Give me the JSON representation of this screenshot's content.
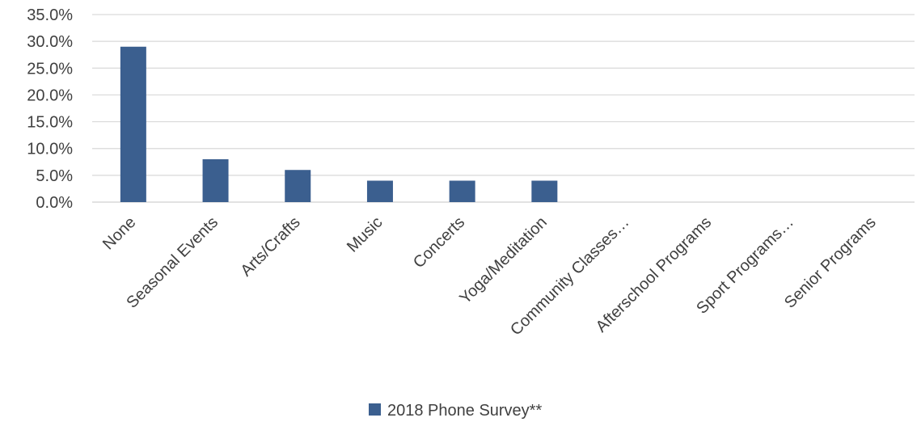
{
  "chart_data": {
    "type": "bar",
    "categories": [
      "None",
      "Seasonal Events",
      "Arts/Crafts",
      "Music",
      "Concerts",
      "Yoga/Meditation",
      "Community Classes…",
      "Afterschool Programs",
      "Sport Programs…",
      "Senior Programs"
    ],
    "series": [
      {
        "name": "2018 Phone Survey**",
        "values": [
          29.0,
          8.0,
          6.0,
          4.0,
          4.0,
          4.0,
          0.0,
          0.0,
          0.0,
          0.0
        ],
        "color": "#3B5F8F"
      }
    ],
    "yticks": [
      "0.0%",
      "5.0%",
      "10.0%",
      "15.0%",
      "20.0%",
      "25.0%",
      "30.0%",
      "35.0%"
    ],
    "ylim": [
      0,
      35
    ],
    "grid": true,
    "legend_position": "bottom",
    "gridline_color": "#D9D9D9"
  }
}
